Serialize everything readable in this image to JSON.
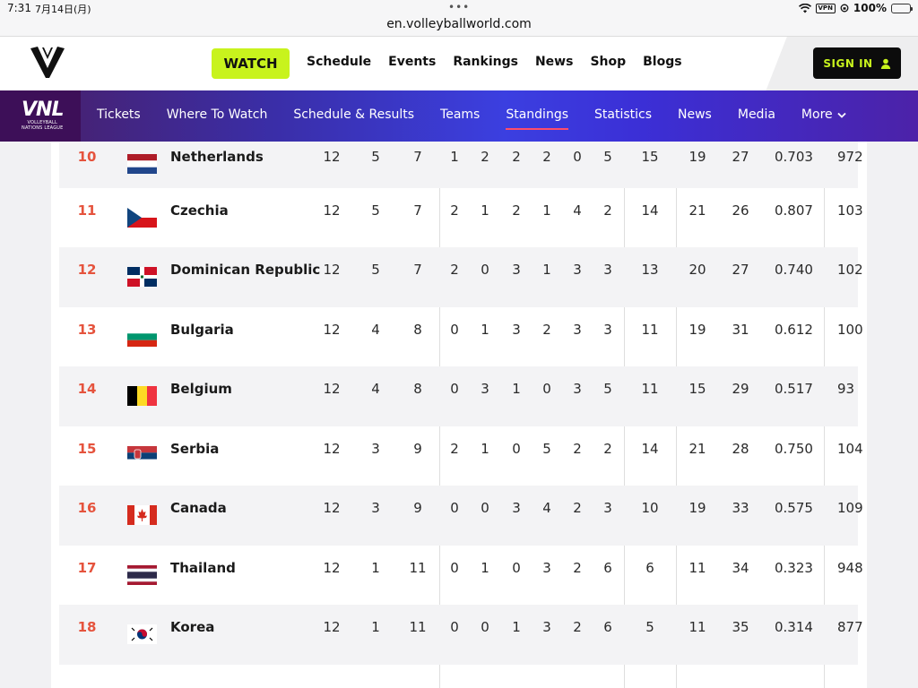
{
  "status_bar": {
    "time": "7:31",
    "date": "7月14日(月)",
    "dots": "•••",
    "url": "en.volleyballworld.com",
    "vpn": "VPN",
    "battery": "100%"
  },
  "top_nav": {
    "watch_label": "WATCH",
    "links": [
      "Schedule",
      "Events",
      "Rankings",
      "News",
      "Shop",
      "Blogs"
    ],
    "signin_label": "SIGN IN"
  },
  "sub_nav": {
    "logo_text": "VNL",
    "logo_sub1": "VOLLEYBALL",
    "logo_sub2": "NATIONS LEAGUE",
    "links": [
      "Tickets",
      "Where To Watch",
      "Schedule & Results",
      "Teams",
      "Standings",
      "Statistics",
      "News",
      "Media",
      "More"
    ],
    "active": "Standings"
  },
  "colors": {
    "accent_lime": "#c8f31d",
    "rank_red": "#e5533d",
    "nav_purple": "#3b3fe0",
    "active_underline": "#ff4d6a"
  },
  "standings": {
    "rows": [
      {
        "rank": "10",
        "team": "Netherlands",
        "flag": "netherlands-flag",
        "values": [
          "12",
          "5",
          "7",
          "1",
          "2",
          "2",
          "2",
          "0",
          "5",
          "15",
          "19",
          "27",
          "0.703",
          "972"
        ]
      },
      {
        "rank": "11",
        "team": "Czechia",
        "flag": "czechia-flag",
        "values": [
          "12",
          "5",
          "7",
          "2",
          "1",
          "2",
          "1",
          "4",
          "2",
          "14",
          "21",
          "26",
          "0.807",
          "103"
        ]
      },
      {
        "rank": "12",
        "team": "Dominican Republic",
        "flag": "dominican-republic-flag",
        "values": [
          "12",
          "5",
          "7",
          "2",
          "0",
          "3",
          "1",
          "3",
          "3",
          "13",
          "20",
          "27",
          "0.740",
          "102"
        ]
      },
      {
        "rank": "13",
        "team": "Bulgaria",
        "flag": "bulgaria-flag",
        "values": [
          "12",
          "4",
          "8",
          "0",
          "1",
          "3",
          "2",
          "3",
          "3",
          "11",
          "19",
          "31",
          "0.612",
          "100"
        ]
      },
      {
        "rank": "14",
        "team": "Belgium",
        "flag": "belgium-flag",
        "values": [
          "12",
          "4",
          "8",
          "0",
          "3",
          "1",
          "0",
          "3",
          "5",
          "11",
          "15",
          "29",
          "0.517",
          "93"
        ]
      },
      {
        "rank": "15",
        "team": "Serbia",
        "flag": "serbia-flag",
        "values": [
          "12",
          "3",
          "9",
          "2",
          "1",
          "0",
          "5",
          "2",
          "2",
          "14",
          "21",
          "28",
          "0.750",
          "104"
        ]
      },
      {
        "rank": "16",
        "team": "Canada",
        "flag": "canada-flag",
        "values": [
          "12",
          "3",
          "9",
          "0",
          "0",
          "3",
          "4",
          "2",
          "3",
          "10",
          "19",
          "33",
          "0.575",
          "109"
        ]
      },
      {
        "rank": "17",
        "team": "Thailand",
        "flag": "thailand-flag",
        "values": [
          "12",
          "1",
          "11",
          "0",
          "1",
          "0",
          "3",
          "2",
          "6",
          "6",
          "11",
          "34",
          "0.323",
          "948"
        ]
      },
      {
        "rank": "18",
        "team": "Korea",
        "flag": "korea-flag",
        "values": [
          "12",
          "1",
          "11",
          "0",
          "0",
          "1",
          "3",
          "2",
          "6",
          "5",
          "11",
          "35",
          "0.314",
          "877"
        ]
      }
    ]
  }
}
